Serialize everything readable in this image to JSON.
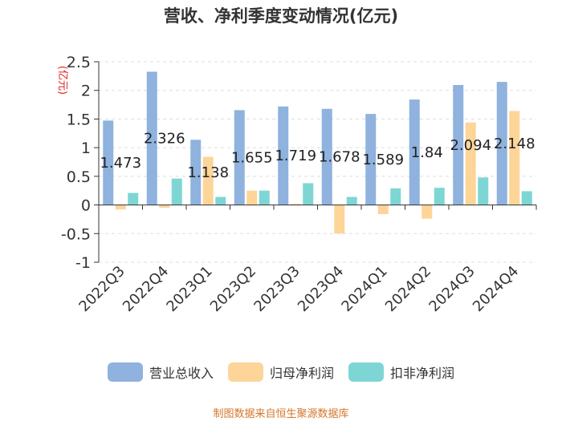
{
  "page": {
    "title": "营收、净利季度变动情况(亿元)",
    "source_note": "制图数据来自恒生聚源数据库"
  },
  "colors": {
    "revenue": "#8fb2de",
    "net_profit": "#fdd598",
    "non_gaap_profit": "#7ed6d4",
    "axis": "#333333",
    "grid": "#dddddd",
    "unit_label": "#e02020"
  },
  "chart_data": {
    "type": "bar",
    "title": "营收、净利季度变动情况(亿元)",
    "ylabel": "(亿元)",
    "xlabel": "",
    "ylim": [
      -1,
      2.5
    ],
    "yticks": [
      -1,
      -0.5,
      0,
      0.5,
      1,
      1.5,
      2,
      2.5
    ],
    "ytick_labels": [
      "-1",
      "-0.5",
      "0",
      "0.5",
      "1",
      "1.5",
      "2",
      "2.5"
    ],
    "categories": [
      "2022Q3",
      "2022Q4",
      "2023Q1",
      "2023Q2",
      "2023Q3",
      "2023Q4",
      "2024Q1",
      "2024Q2",
      "2024Q3",
      "2024Q4"
    ],
    "series": [
      {
        "name": "营业总收入",
        "color_key": "revenue",
        "values": [
          1.473,
          2.326,
          1.138,
          1.655,
          1.719,
          1.678,
          1.589,
          1.84,
          2.094,
          2.148
        ]
      },
      {
        "name": "归母净利润",
        "color_key": "net_profit",
        "values": [
          -0.08,
          -0.05,
          0.84,
          0.25,
          0.02,
          -0.5,
          -0.16,
          -0.24,
          1.44,
          1.64
        ]
      },
      {
        "name": "扣非净利润",
        "color_key": "non_gaap_profit",
        "values": [
          0.21,
          0.46,
          0.14,
          0.25,
          0.38,
          0.14,
          0.29,
          0.3,
          0.48,
          0.24
        ]
      }
    ],
    "data_labels": [
      "1.473",
      "2.326",
      "1.138",
      "1.655",
      "1.719",
      "1.678",
      "1.589",
      "1.84",
      "2.094",
      "2.148"
    ],
    "legend_position": "bottom",
    "grid": true
  }
}
